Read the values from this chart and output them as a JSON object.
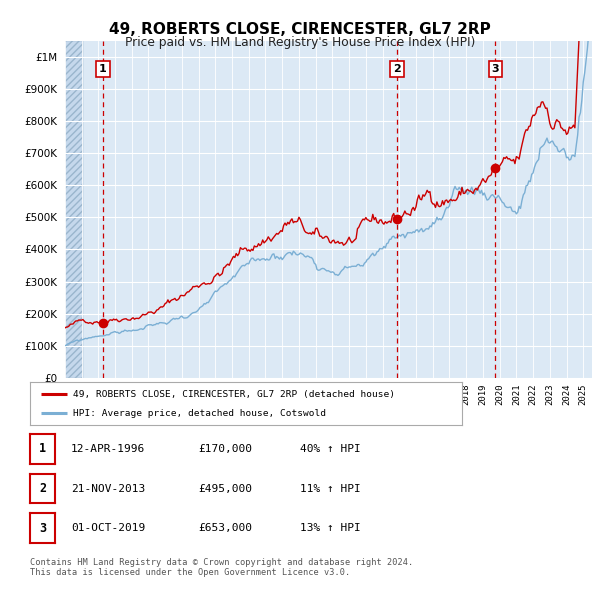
{
  "title": "49, ROBERTS CLOSE, CIRENCESTER, GL7 2RP",
  "subtitle": "Price paid vs. HM Land Registry's House Price Index (HPI)",
  "legend_label_red": "49, ROBERTS CLOSE, CIRENCESTER, GL7 2RP (detached house)",
  "legend_label_blue": "HPI: Average price, detached house, Cotswold",
  "footer_line1": "Contains HM Land Registry data © Crown copyright and database right 2024.",
  "footer_line2": "This data is licensed under the Open Government Licence v3.0.",
  "transactions": [
    {
      "num": 1,
      "date_label": "12-APR-1996",
      "price": 170000,
      "hpi_pct": "40%",
      "x_year": 1996.28
    },
    {
      "num": 2,
      "date_label": "21-NOV-2013",
      "price": 495000,
      "hpi_pct": "11%",
      "x_year": 2013.89
    },
    {
      "num": 3,
      "date_label": "01-OCT-2019",
      "price": 653000,
      "hpi_pct": "13%",
      "x_year": 2019.75
    }
  ],
  "ylim": [
    0,
    1050000
  ],
  "yticks": [
    0,
    100000,
    200000,
    300000,
    400000,
    500000,
    600000,
    700000,
    800000,
    900000,
    1000000
  ],
  "xlim_start": 1994.0,
  "xlim_end": 2025.5,
  "red_color": "#cc0000",
  "blue_color": "#7bafd4",
  "vline_color": "#cc0000",
  "bg_color": "#dce9f5",
  "grid_color": "#ffffff"
}
